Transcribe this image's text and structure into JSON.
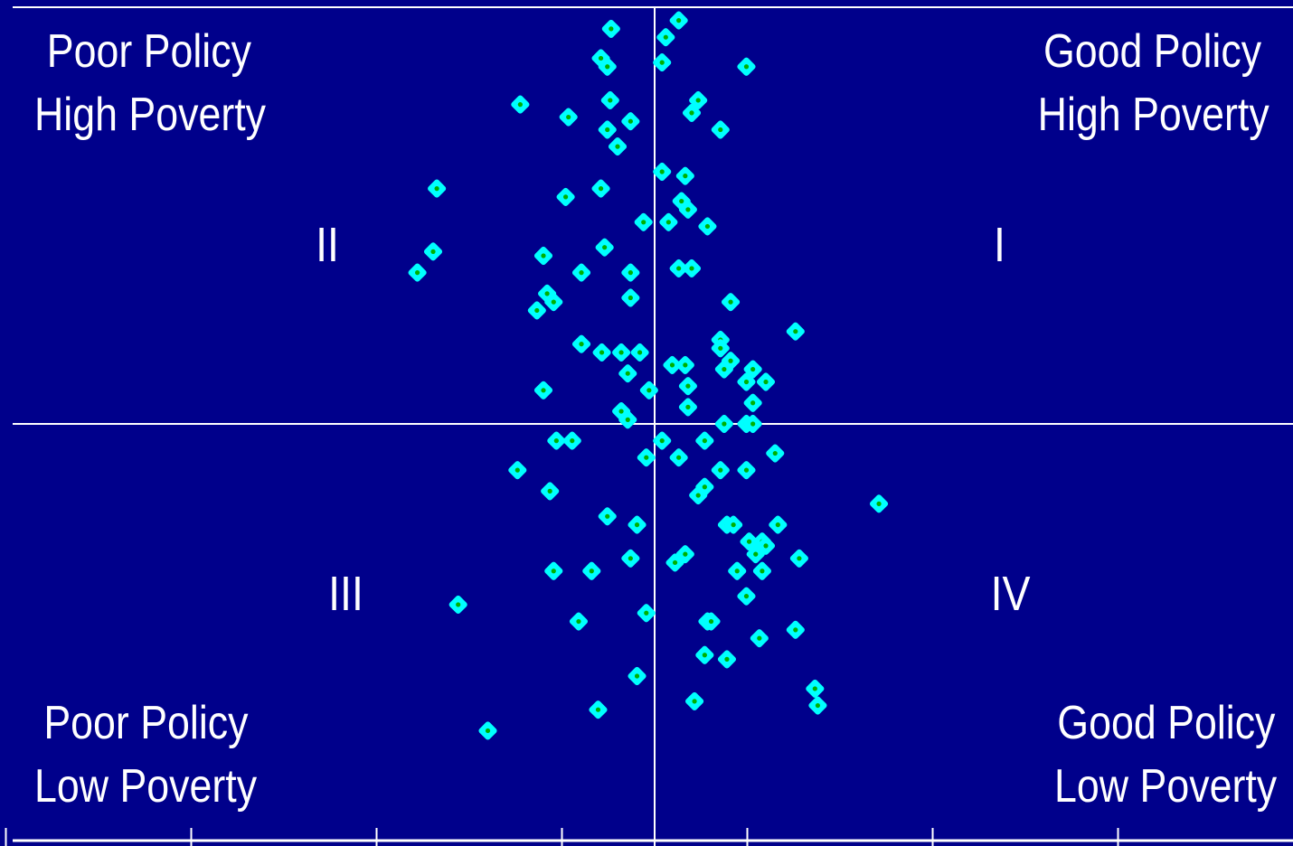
{
  "chart_data": {
    "type": "scatter",
    "quadrant_labels": {
      "top_left": [
        "Poor Policy",
        "High Poverty"
      ],
      "top_right": [
        "Good Policy",
        "High Poverty"
      ],
      "bottom_left": [
        "Poor Policy",
        "Low Poverty"
      ],
      "bottom_right": [
        "Good Policy",
        "Low Poverty"
      ]
    },
    "quadrant_numerals": [
      "I",
      "II",
      "III",
      "IV"
    ],
    "xlim": [
      -3.5,
      3.5
    ],
    "ylim": [
      -1.0,
      1.0
    ],
    "grid": false,
    "points": [
      {
        "x": 0.26,
        "y": 0.96
      },
      {
        "x": 0.12,
        "y": 0.92
      },
      {
        "x": -0.47,
        "y": 0.94
      },
      {
        "x": -0.58,
        "y": 0.87
      },
      {
        "x": -0.51,
        "y": 0.85
      },
      {
        "x": 0.08,
        "y": 0.86
      },
      {
        "x": 0.99,
        "y": 0.85
      },
      {
        "x": -1.45,
        "y": 0.76
      },
      {
        "x": -0.93,
        "y": 0.73
      },
      {
        "x": -0.48,
        "y": 0.77
      },
      {
        "x": -0.26,
        "y": 0.72
      },
      {
        "x": -0.51,
        "y": 0.7
      },
      {
        "x": -0.4,
        "y": 0.66
      },
      {
        "x": 0.47,
        "y": 0.77
      },
      {
        "x": 0.4,
        "y": 0.74
      },
      {
        "x": 0.71,
        "y": 0.7
      },
      {
        "x": -2.35,
        "y": 0.56
      },
      {
        "x": -0.96,
        "y": 0.54
      },
      {
        "x": -0.58,
        "y": 0.56
      },
      {
        "x": 0.08,
        "y": 0.6
      },
      {
        "x": 0.33,
        "y": 0.59
      },
      {
        "x": 0.29,
        "y": 0.53
      },
      {
        "x": 0.36,
        "y": 0.51
      },
      {
        "x": 0.15,
        "y": 0.48
      },
      {
        "x": 0.57,
        "y": 0.47
      },
      {
        "x": -0.12,
        "y": 0.48
      },
      {
        "x": -2.39,
        "y": 0.41
      },
      {
        "x": -2.56,
        "y": 0.36
      },
      {
        "x": -1.2,
        "y": 0.4
      },
      {
        "x": -0.79,
        "y": 0.36
      },
      {
        "x": -0.54,
        "y": 0.42
      },
      {
        "x": -0.26,
        "y": 0.36
      },
      {
        "x": -0.26,
        "y": 0.3
      },
      {
        "x": 0.26,
        "y": 0.37
      },
      {
        "x": 0.4,
        "y": 0.37
      },
      {
        "x": -1.16,
        "y": 0.31
      },
      {
        "x": -1.09,
        "y": 0.29
      },
      {
        "x": -1.27,
        "y": 0.27
      },
      {
        "x": 0.82,
        "y": 0.29
      },
      {
        "x": 1.52,
        "y": 0.22
      },
      {
        "x": -0.79,
        "y": 0.19
      },
      {
        "x": -0.57,
        "y": 0.17
      },
      {
        "x": -0.36,
        "y": 0.17
      },
      {
        "x": -0.16,
        "y": 0.17
      },
      {
        "x": 0.71,
        "y": 0.2
      },
      {
        "x": 0.71,
        "y": 0.18
      },
      {
        "x": 0.82,
        "y": 0.15
      },
      {
        "x": 0.19,
        "y": 0.14
      },
      {
        "x": 0.33,
        "y": 0.14
      },
      {
        "x": 0.75,
        "y": 0.13
      },
      {
        "x": 1.06,
        "y": 0.13
      },
      {
        "x": 1.2,
        "y": 0.1
      },
      {
        "x": 0.99,
        "y": 0.1
      },
      {
        "x": -0.29,
        "y": 0.12
      },
      {
        "x": -1.2,
        "y": 0.08
      },
      {
        "x": -0.06,
        "y": 0.08
      },
      {
        "x": 0.36,
        "y": 0.09
      },
      {
        "x": -0.36,
        "y": 0.03
      },
      {
        "x": -0.29,
        "y": 0.01
      },
      {
        "x": 1.06,
        "y": 0.05
      },
      {
        "x": 0.36,
        "y": 0.04
      },
      {
        "x": 0.75,
        "y": 0.0
      },
      {
        "x": 0.99,
        "y": 0.0
      },
      {
        "x": 1.06,
        "y": 0.0
      },
      {
        "x": -1.06,
        "y": -0.04
      },
      {
        "x": -0.89,
        "y": -0.04
      },
      {
        "x": 0.08,
        "y": -0.04
      },
      {
        "x": 0.54,
        "y": -0.04
      },
      {
        "x": 1.3,
        "y": -0.07
      },
      {
        "x": -0.09,
        "y": -0.08
      },
      {
        "x": 0.26,
        "y": -0.08
      },
      {
        "x": -1.48,
        "y": -0.11
      },
      {
        "x": 0.71,
        "y": -0.11
      },
      {
        "x": 0.99,
        "y": -0.11
      },
      {
        "x": -1.13,
        "y": -0.16
      },
      {
        "x": 0.54,
        "y": -0.15
      },
      {
        "x": 0.47,
        "y": -0.17
      },
      {
        "x": 2.42,
        "y": -0.19
      },
      {
        "x": -0.51,
        "y": -0.22
      },
      {
        "x": -0.19,
        "y": -0.24
      },
      {
        "x": 0.78,
        "y": -0.24
      },
      {
        "x": 0.85,
        "y": -0.24
      },
      {
        "x": 1.33,
        "y": -0.24
      },
      {
        "x": 1.02,
        "y": -0.28
      },
      {
        "x": 1.16,
        "y": -0.28
      },
      {
        "x": 1.2,
        "y": -0.29
      },
      {
        "x": 1.09,
        "y": -0.31
      },
      {
        "x": 0.33,
        "y": -0.31
      },
      {
        "x": -0.26,
        "y": -0.32
      },
      {
        "x": 0.22,
        "y": -0.33
      },
      {
        "x": 1.56,
        "y": -0.32
      },
      {
        "x": -1.09,
        "y": -0.35
      },
      {
        "x": -0.68,
        "y": -0.35
      },
      {
        "x": 0.89,
        "y": -0.35
      },
      {
        "x": 1.16,
        "y": -0.35
      },
      {
        "x": -2.12,
        "y": -0.43
      },
      {
        "x": 0.99,
        "y": -0.41
      },
      {
        "x": -0.09,
        "y": -0.45
      },
      {
        "x": -0.82,
        "y": -0.47
      },
      {
        "x": 0.57,
        "y": -0.47
      },
      {
        "x": 0.61,
        "y": -0.47
      },
      {
        "x": 1.52,
        "y": -0.49
      },
      {
        "x": 1.13,
        "y": -0.51
      },
      {
        "x": 0.54,
        "y": -0.55
      },
      {
        "x": 0.78,
        "y": -0.56
      },
      {
        "x": -0.19,
        "y": -0.6
      },
      {
        "x": 1.73,
        "y": -0.63
      },
      {
        "x": 1.76,
        "y": -0.67
      },
      {
        "x": -0.61,
        "y": -0.68
      },
      {
        "x": 0.43,
        "y": -0.66
      },
      {
        "x": -1.8,
        "y": -0.73
      }
    ]
  }
}
